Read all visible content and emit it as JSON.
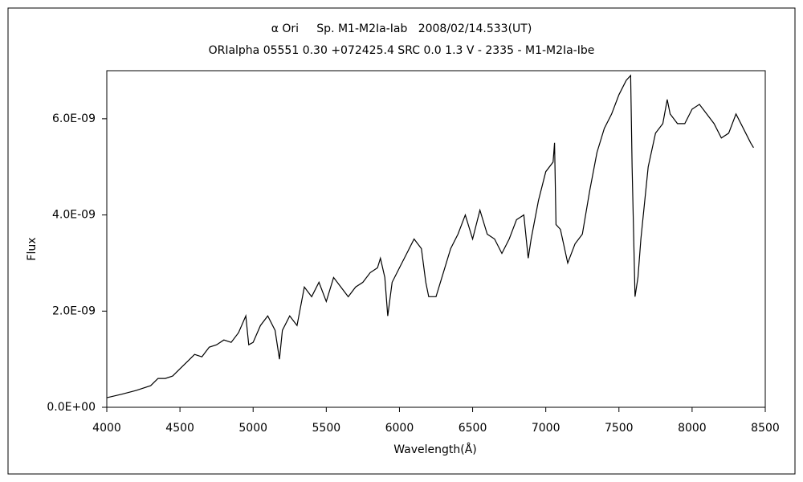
{
  "chart_data": {
    "type": "line",
    "title": "α Ori     Sp. M1-M2Ia-Iab   2008/02/14.533(UT)",
    "subtitle": "ORIalpha 05551 0.30 +072425.4 SRC 0.0 1.3 V - 2335 - M1-M2Ia-Ibe",
    "x_label": "Wavelength(Å)",
    "y_label": "Flux",
    "xlim": [
      4000,
      8500
    ],
    "xticks": [
      4000,
      4500,
      5000,
      5500,
      6000,
      6500,
      7000,
      7500,
      8000,
      8500
    ],
    "ylim": [
      0,
      7e-09
    ],
    "yticks": [
      {
        "value": 0,
        "label": "0.0E+00"
      },
      {
        "value": 2e-09,
        "label": "2.0E-09"
      },
      {
        "value": 4e-09,
        "label": "4.0E-09"
      },
      {
        "value": 6e-09,
        "label": "6.0E-09"
      }
    ],
    "grid": false,
    "color": "#000000",
    "x": [
      4000,
      4100,
      4200,
      4300,
      4350,
      4400,
      4450,
      4500,
      4550,
      4600,
      4650,
      4700,
      4750,
      4800,
      4850,
      4900,
      4950,
      4970,
      5000,
      5050,
      5100,
      5150,
      5180,
      5200,
      5250,
      5300,
      5350,
      5400,
      5450,
      5500,
      5550,
      5600,
      5650,
      5700,
      5750,
      5800,
      5850,
      5870,
      5900,
      5920,
      5950,
      6000,
      6050,
      6100,
      6150,
      6180,
      6200,
      6250,
      6300,
      6350,
      6400,
      6450,
      6500,
      6550,
      6600,
      6650,
      6700,
      6750,
      6800,
      6850,
      6880,
      6900,
      6950,
      7000,
      7050,
      7060,
      7070,
      7100,
      7150,
      7200,
      7250,
      7300,
      7350,
      7400,
      7450,
      7500,
      7550,
      7580,
      7590,
      7610,
      7630,
      7650,
      7700,
      7750,
      7800,
      7830,
      7850,
      7900,
      7950,
      8000,
      8050,
      8100,
      8150,
      8200,
      8250,
      8300,
      8350,
      8400,
      8420
    ],
    "values": [
      2e-10,
      2.7e-10,
      3.5e-10,
      4.5e-10,
      6e-10,
      6e-10,
      6.5e-10,
      8e-10,
      9.5e-10,
      1.1e-09,
      1.05e-09,
      1.25e-09,
      1.3e-09,
      1.4e-09,
      1.35e-09,
      1.55e-09,
      1.9e-09,
      1.3e-09,
      1.35e-09,
      1.7e-09,
      1.9e-09,
      1.6e-09,
      1e-09,
      1.6e-09,
      1.9e-09,
      1.7e-09,
      2.5e-09,
      2.3e-09,
      2.6e-09,
      2.2e-09,
      2.7e-09,
      2.5e-09,
      2.3e-09,
      2.5e-09,
      2.6e-09,
      2.8e-09,
      2.9e-09,
      3.1e-09,
      2.7e-09,
      1.9e-09,
      2.6e-09,
      2.9e-09,
      3.2e-09,
      3.5e-09,
      3.3e-09,
      2.6e-09,
      2.3e-09,
      2.3e-09,
      2.8e-09,
      3.3e-09,
      3.6e-09,
      4e-09,
      3.5e-09,
      4.1e-09,
      3.6e-09,
      3.5e-09,
      3.2e-09,
      3.5e-09,
      3.9e-09,
      4e-09,
      3.1e-09,
      3.5e-09,
      4.3e-09,
      4.9e-09,
      5.1e-09,
      5.5e-09,
      3.8e-09,
      3.7e-09,
      3e-09,
      3.4e-09,
      3.6e-09,
      4.5e-09,
      5.3e-09,
      5.8e-09,
      6.1e-09,
      6.5e-09,
      6.8e-09,
      6.9e-09,
      5e-09,
      2.3e-09,
      2.7e-09,
      3.5e-09,
      5e-09,
      5.7e-09,
      5.9e-09,
      6.4e-09,
      6.1e-09,
      5.9e-09,
      5.9e-09,
      6.2e-09,
      6.3e-09,
      6.1e-09,
      5.9e-09,
      5.6e-09,
      5.7e-09,
      6.1e-09,
      5.8e-09,
      5.5e-09,
      5.4e-09
    ]
  }
}
